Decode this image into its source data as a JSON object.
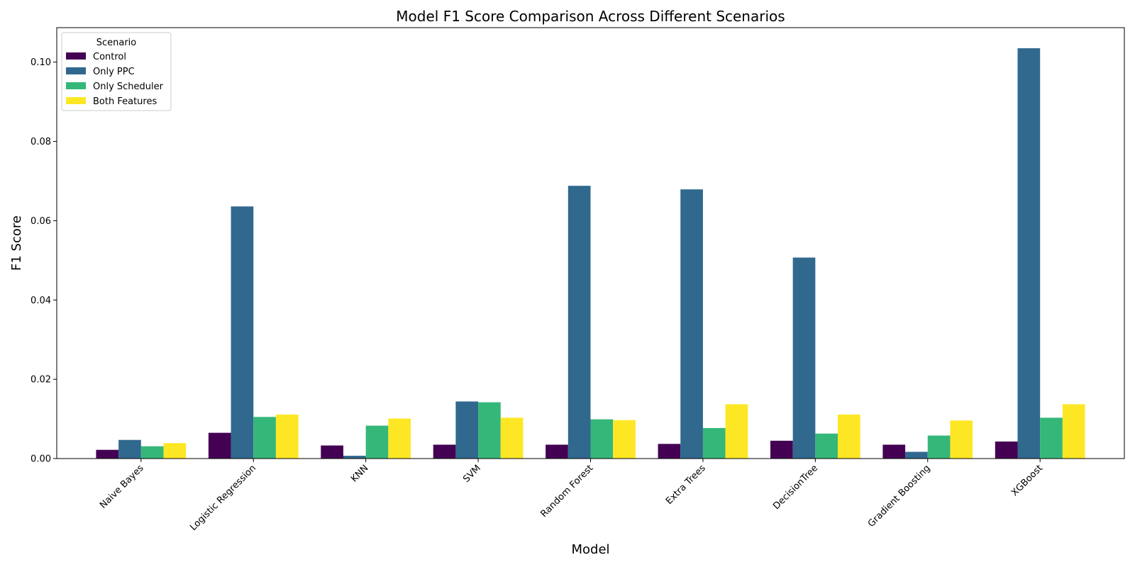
{
  "chart_data": {
    "type": "bar",
    "title": "Model F1 Score Comparison Across Different Scenarios",
    "xlabel": "Model",
    "ylabel": "F1 Score",
    "categories": [
      "Naive Bayes",
      "Logistic Regression",
      "KNN",
      "SVM",
      "Random Forest",
      "Extra Trees",
      "DecisionTree",
      "Gradient Boosting",
      "XGBoost"
    ],
    "series": [
      {
        "name": "Control",
        "color": "#440154",
        "values": [
          0.0022,
          0.0065,
          0.0033,
          0.0035,
          0.0035,
          0.0037,
          0.0045,
          0.0035,
          0.0043
        ]
      },
      {
        "name": "Only PPC",
        "color": "#31688e",
        "values": [
          0.0047,
          0.0636,
          0.0007,
          0.0144,
          0.0688,
          0.0679,
          0.0507,
          0.0017,
          0.1035
        ]
      },
      {
        "name": "Only Scheduler",
        "color": "#35b779",
        "values": [
          0.0031,
          0.0105,
          0.0083,
          0.0142,
          0.0099,
          0.0077,
          0.0063,
          0.0058,
          0.0103
        ]
      },
      {
        "name": "Both Features",
        "color": "#fde725",
        "values": [
          0.0039,
          0.0111,
          0.0101,
          0.0103,
          0.0097,
          0.0137,
          0.0111,
          0.0096,
          0.0137
        ]
      }
    ],
    "ylim": [
      0,
      0.1087
    ],
    "yticks": [
      "0.00",
      "0.02",
      "0.04",
      "0.06",
      "0.08",
      "0.10"
    ],
    "legend": {
      "title": "Scenario",
      "placement": "top-left"
    },
    "grid": false
  }
}
